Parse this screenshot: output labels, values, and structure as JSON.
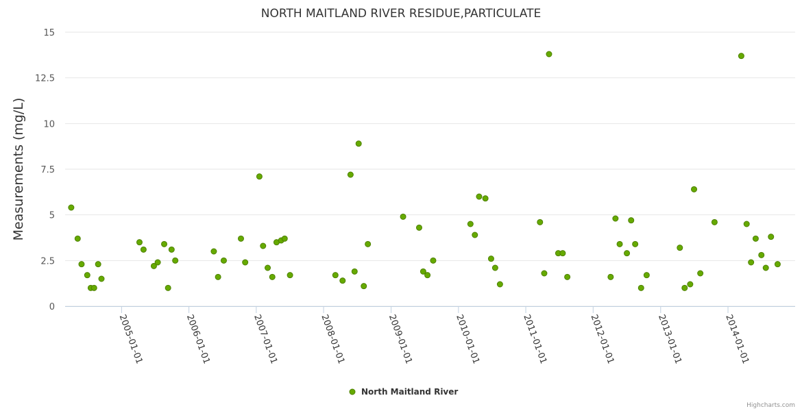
{
  "chart_data": {
    "type": "scatter",
    "title": "NORTH MAITLAND RIVER RESIDUE,PARTICULATE",
    "xlabel": "",
    "ylabel": "Measurements (mg/L)",
    "ylim": [
      0,
      15
    ],
    "yticks": [
      "0",
      "2.5",
      "5",
      "7.5",
      "10",
      "12.5",
      "15"
    ],
    "xlim": [
      "2004-03-01",
      "2014-12-31"
    ],
    "xticks": [
      "2005-01-01",
      "2006-01-01",
      "2007-01-01",
      "2008-01-01",
      "2009-01-01",
      "2010-01-01",
      "2011-01-01",
      "2012-01-01",
      "2013-01-01",
      "2014-01-01"
    ],
    "legend": "bottom-center",
    "grid": true,
    "color": "#66aa00",
    "series": [
      {
        "name": "North Maitland River",
        "points": [
          [
            "2004-04-03",
            5.4
          ],
          [
            "2004-05-08",
            3.7
          ],
          [
            "2004-05-29",
            2.3
          ],
          [
            "2004-06-29",
            1.7
          ],
          [
            "2004-07-18",
            1.0
          ],
          [
            "2004-08-05",
            1.0
          ],
          [
            "2004-08-27",
            2.3
          ],
          [
            "2004-09-14",
            1.5
          ],
          [
            "2005-04-08",
            3.5
          ],
          [
            "2005-04-30",
            3.1
          ],
          [
            "2005-06-25",
            2.2
          ],
          [
            "2005-07-16",
            2.4
          ],
          [
            "2005-08-20",
            3.4
          ],
          [
            "2005-09-10",
            1.0
          ],
          [
            "2005-09-29",
            3.1
          ],
          [
            "2005-10-19",
            2.5
          ],
          [
            "2006-05-16",
            3.0
          ],
          [
            "2006-06-08",
            1.6
          ],
          [
            "2006-07-09",
            2.5
          ],
          [
            "2006-10-10",
            3.7
          ],
          [
            "2006-11-02",
            2.4
          ],
          [
            "2007-01-18",
            7.1
          ],
          [
            "2007-02-07",
            3.3
          ],
          [
            "2007-03-04",
            2.1
          ],
          [
            "2007-03-29",
            1.6
          ],
          [
            "2007-04-21",
            3.5
          ],
          [
            "2007-05-16",
            3.6
          ],
          [
            "2007-06-04",
            3.7
          ],
          [
            "2007-07-03",
            1.7
          ],
          [
            "2008-03-05",
            1.7
          ],
          [
            "2008-04-13",
            1.4
          ],
          [
            "2008-05-26",
            7.2
          ],
          [
            "2008-06-17",
            1.9
          ],
          [
            "2008-07-09",
            8.9
          ],
          [
            "2008-08-06",
            1.1
          ],
          [
            "2008-08-28",
            3.4
          ],
          [
            "2009-03-07",
            4.9
          ],
          [
            "2009-06-02",
            4.3
          ],
          [
            "2009-06-24",
            1.9
          ],
          [
            "2009-07-17",
            1.7
          ],
          [
            "2009-08-17",
            2.5
          ],
          [
            "2010-03-07",
            4.5
          ],
          [
            "2010-03-31",
            3.9
          ],
          [
            "2010-04-23",
            6.0
          ],
          [
            "2010-05-27",
            5.9
          ],
          [
            "2010-06-27",
            2.6
          ],
          [
            "2010-07-19",
            2.1
          ],
          [
            "2010-08-14",
            1.2
          ],
          [
            "2011-03-19",
            4.6
          ],
          [
            "2011-04-11",
            1.8
          ],
          [
            "2011-05-07",
            13.8
          ],
          [
            "2011-06-26",
            2.9
          ],
          [
            "2011-07-20",
            2.9
          ],
          [
            "2011-08-14",
            1.6
          ],
          [
            "2012-04-05",
            1.6
          ],
          [
            "2012-05-01",
            4.8
          ],
          [
            "2012-05-24",
            3.4
          ],
          [
            "2012-07-02",
            2.9
          ],
          [
            "2012-07-25",
            4.7
          ],
          [
            "2012-08-16",
            3.4
          ],
          [
            "2012-09-17",
            1.0
          ],
          [
            "2012-10-17",
            1.7
          ],
          [
            "2013-04-15",
            3.2
          ],
          [
            "2013-05-11",
            1.0
          ],
          [
            "2013-06-10",
            1.2
          ],
          [
            "2013-07-01",
            6.4
          ],
          [
            "2013-08-04",
            1.8
          ],
          [
            "2013-10-20",
            4.6
          ],
          [
            "2014-03-14",
            13.7
          ],
          [
            "2014-04-12",
            4.5
          ],
          [
            "2014-05-06",
            2.4
          ],
          [
            "2014-05-31",
            3.7
          ],
          [
            "2014-07-01",
            2.8
          ],
          [
            "2014-07-25",
            2.1
          ],
          [
            "2014-08-22",
            3.8
          ],
          [
            "2014-09-27",
            2.3
          ]
        ]
      }
    ]
  },
  "credits": "Highcharts.com"
}
